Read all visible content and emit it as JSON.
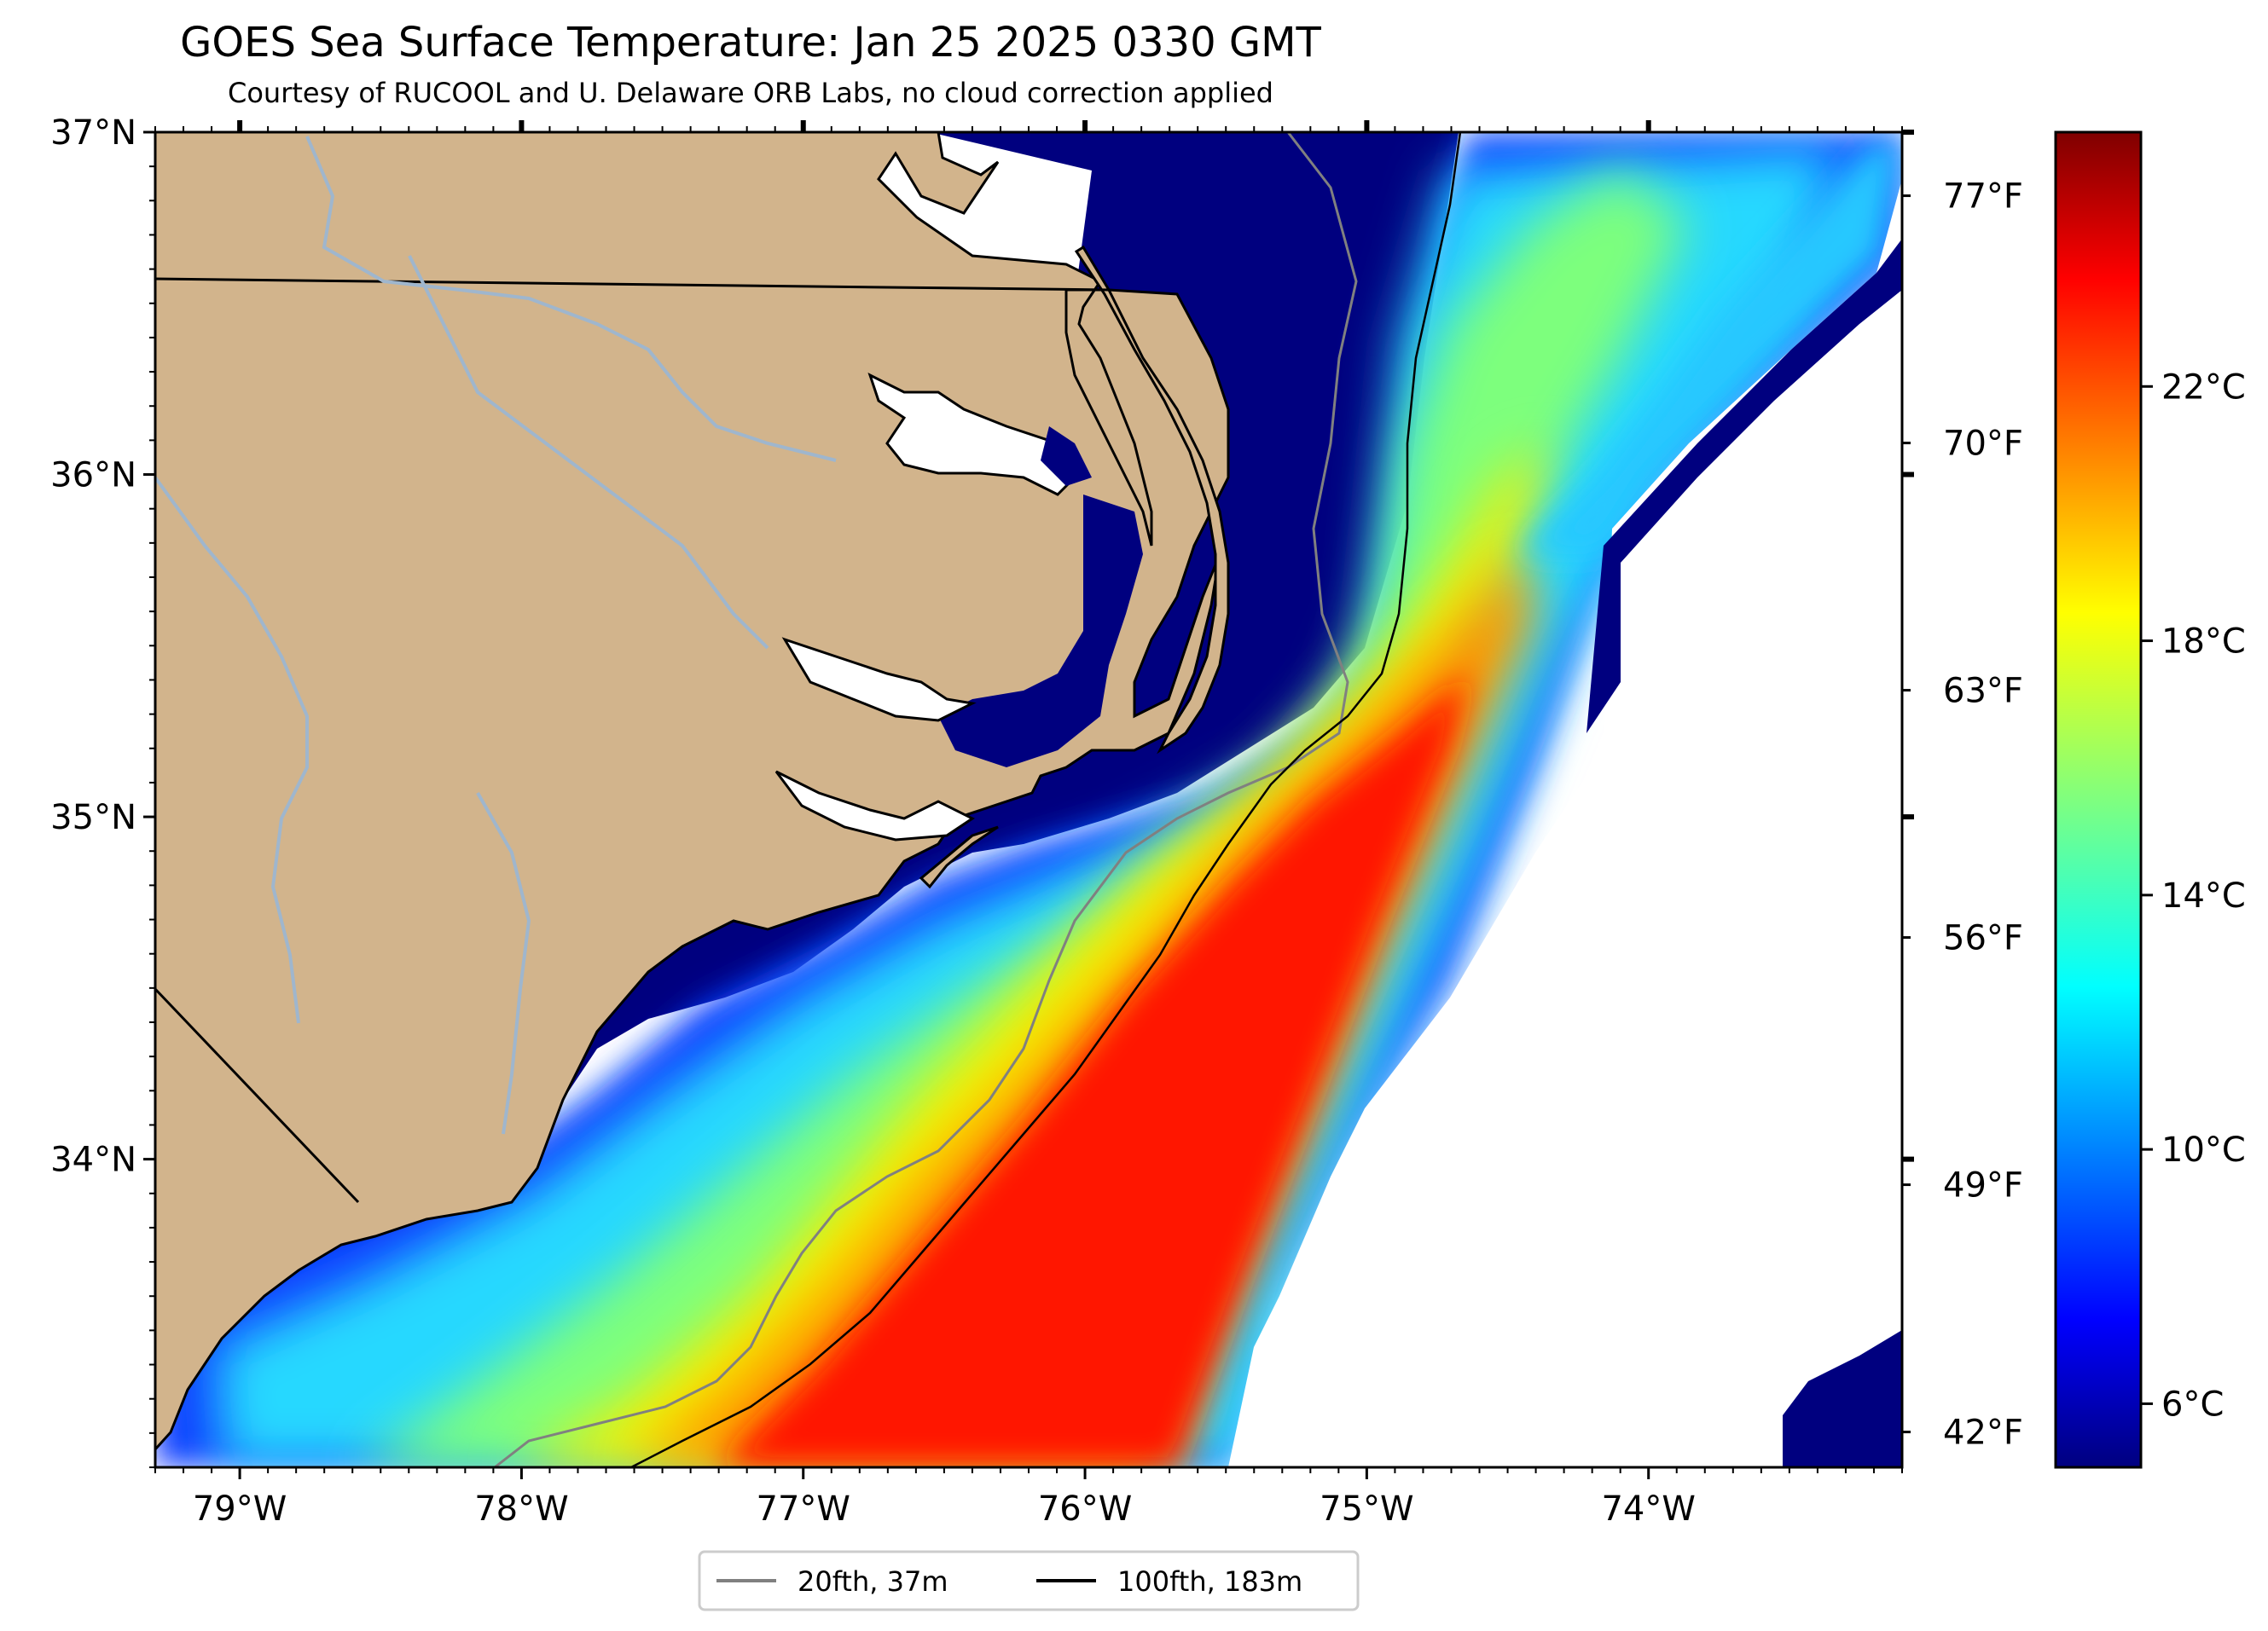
{
  "header": {
    "title": "GOES Sea Surface Temperature: Jan 25 2025 0330 GMT",
    "subtitle": "Courtesy of RUCOOL and U. Delaware ORB Labs, no cloud correction applied"
  },
  "map": {
    "lon_range": [
      -79.3,
      -73.1
    ],
    "lat_range": [
      33.1,
      37.0
    ],
    "lat_ticks": [
      {
        "value": 37,
        "label": "37°N"
      },
      {
        "value": 36,
        "label": "36°N"
      },
      {
        "value": 35,
        "label": "35°N"
      },
      {
        "value": 34,
        "label": "34°N"
      }
    ],
    "lon_ticks": [
      {
        "value": -79,
        "label": "79°W"
      },
      {
        "value": -78,
        "label": "78°W"
      },
      {
        "value": -77,
        "label": "77°W"
      },
      {
        "value": -76,
        "label": "76°W"
      },
      {
        "value": -75,
        "label": "75°W"
      },
      {
        "value": -74,
        "label": "74°W"
      }
    ],
    "fahrenheit_ticks": [
      {
        "value": 77,
        "label": "77°F"
      },
      {
        "value": 70,
        "label": "70°F"
      },
      {
        "value": 63,
        "label": "63°F"
      },
      {
        "value": 56,
        "label": "56°F"
      },
      {
        "value": 49,
        "label": "49°F"
      },
      {
        "value": 42,
        "label": "42°F"
      }
    ],
    "colors": {
      "land": "#d2b48c",
      "river": "#9fb6cd",
      "ocean_cold": "#00007f",
      "coastline": "#000000"
    }
  },
  "colorbar": {
    "range_c": [
      5,
      26
    ],
    "ticks": [
      {
        "value": 6,
        "label": "6°C"
      },
      {
        "value": 10,
        "label": "10°C"
      },
      {
        "value": 14,
        "label": "14°C"
      },
      {
        "value": 18,
        "label": "18°C"
      },
      {
        "value": 22,
        "label": "22°C"
      }
    ],
    "colormap": "jet"
  },
  "legend": {
    "items": [
      {
        "label": "20fth, 37m",
        "color": "#808080"
      },
      {
        "label": "100fth, 183m",
        "color": "#000000"
      }
    ]
  }
}
